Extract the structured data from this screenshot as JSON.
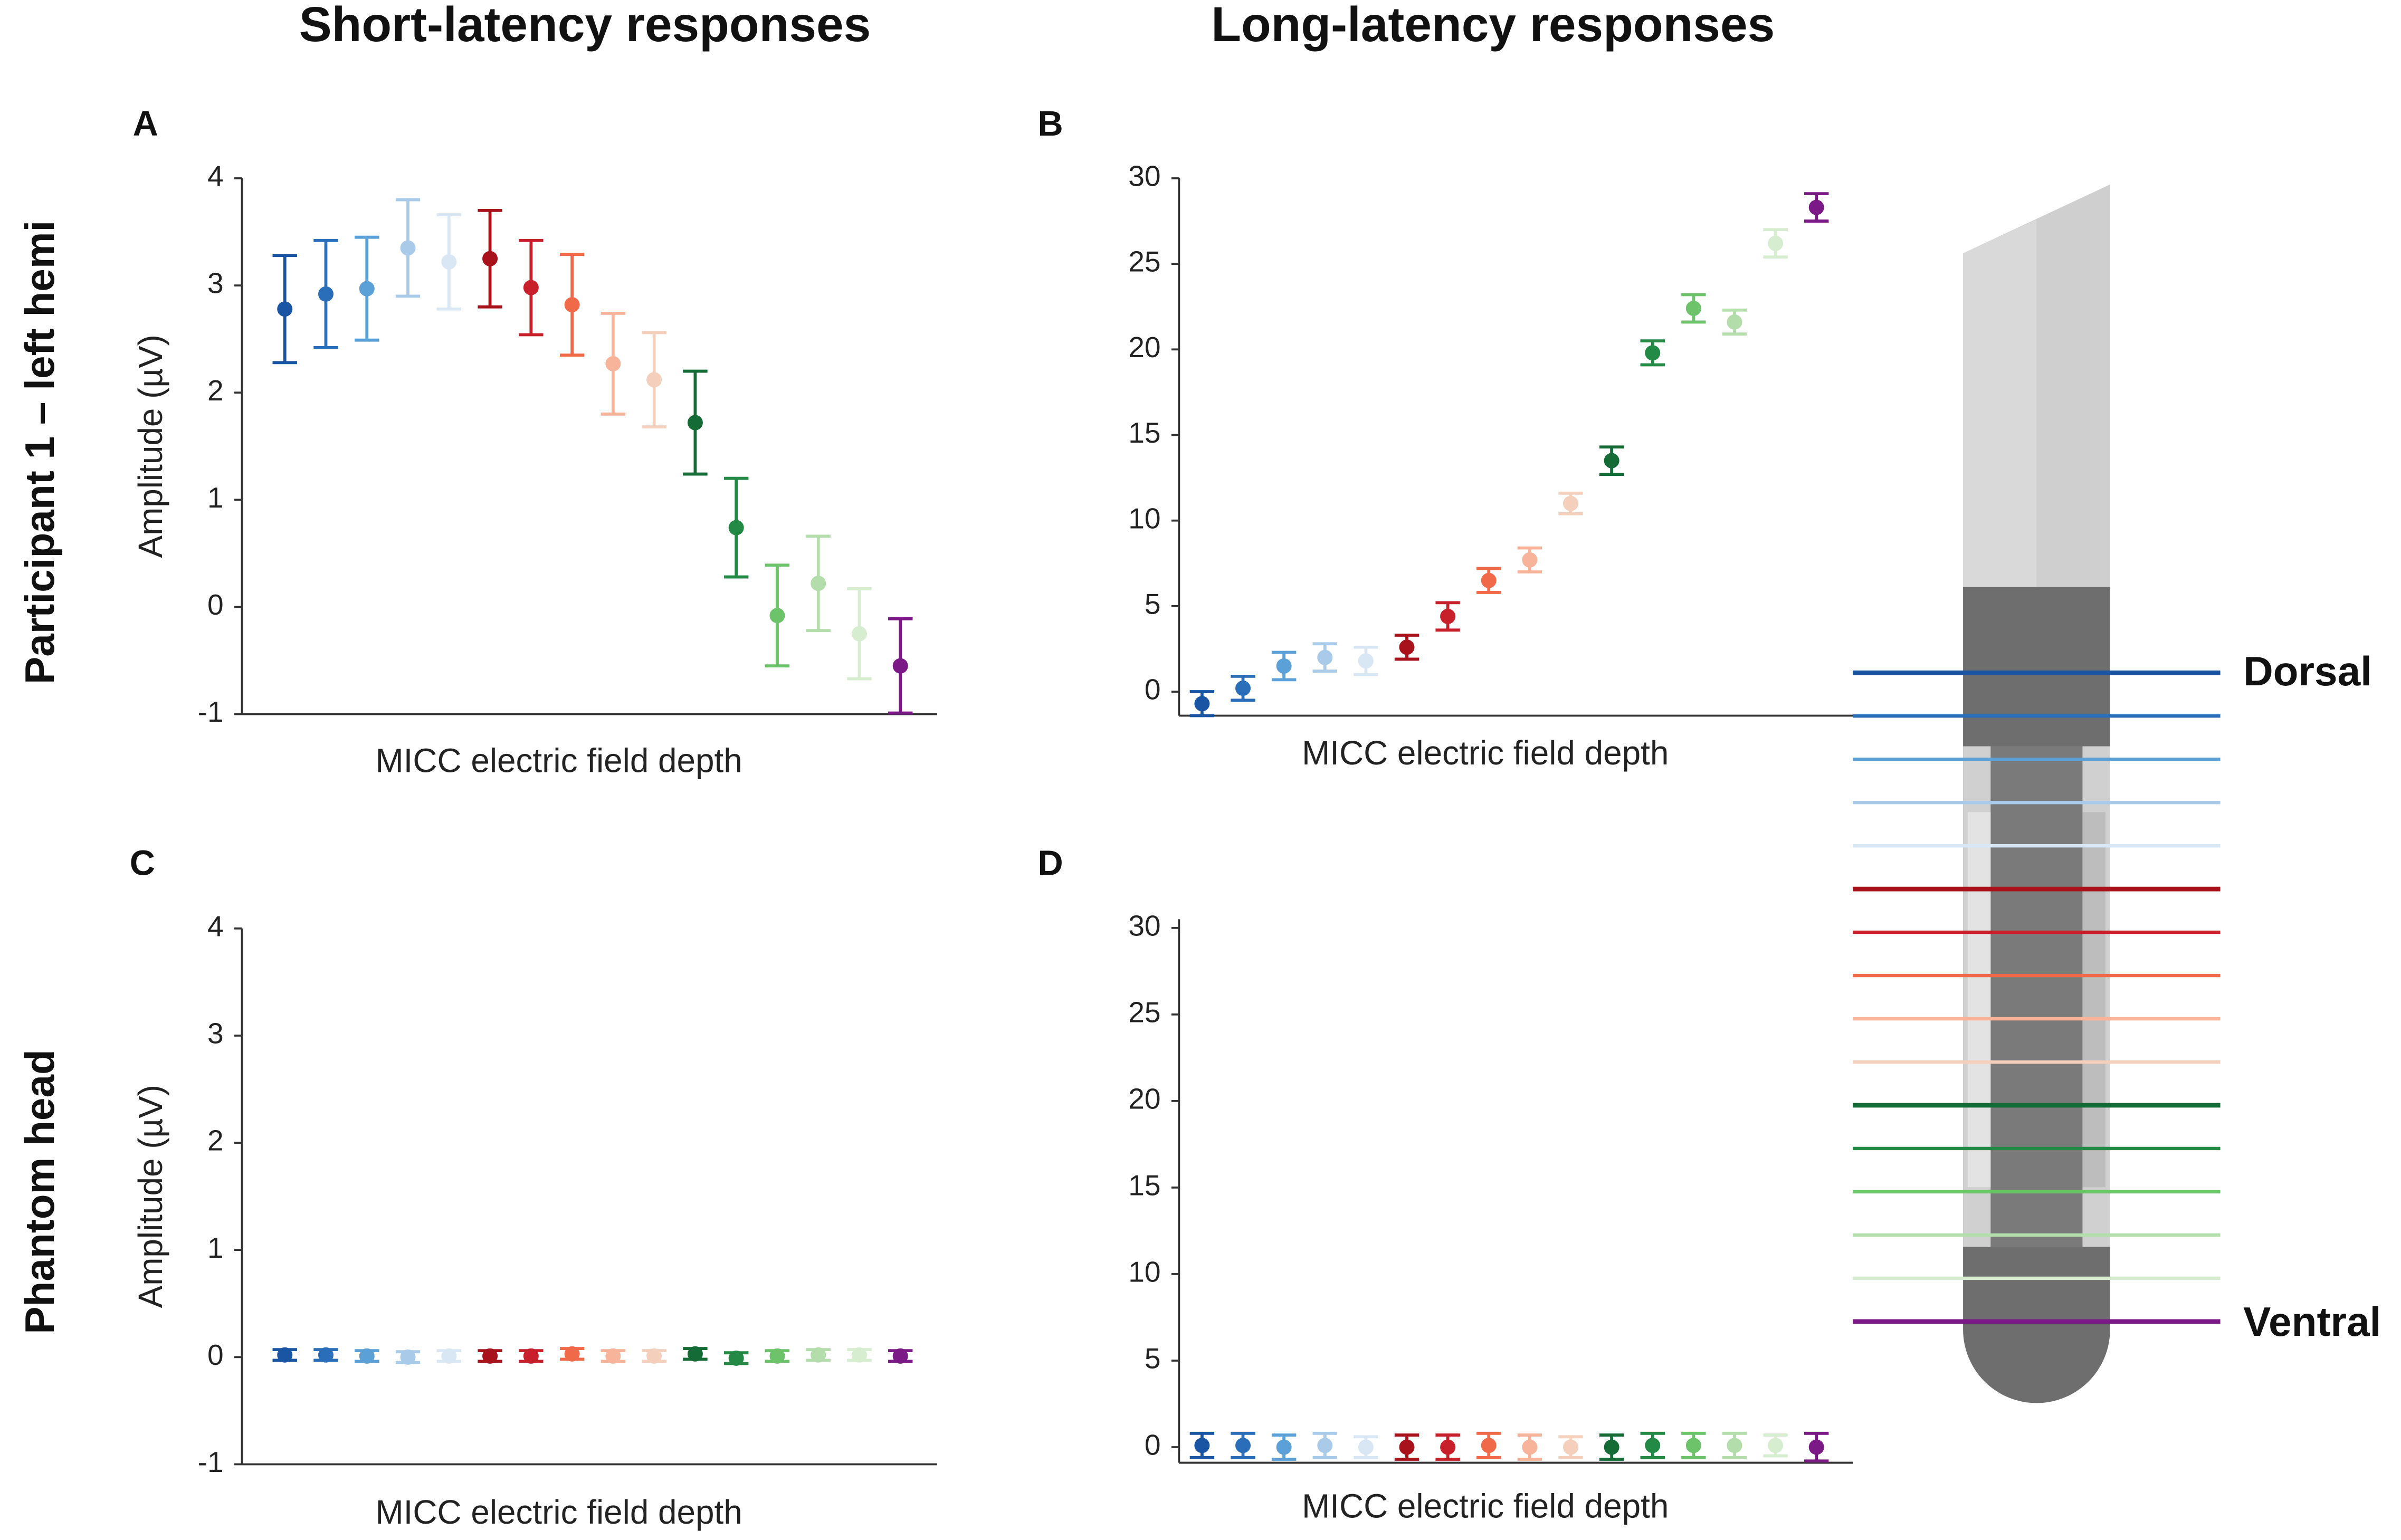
{
  "column_titles": [
    "Short-latency responses",
    "Long-latency responses"
  ],
  "row_labels": [
    "Participant 1 – left hemi",
    "Phantom head"
  ],
  "electrode": {
    "top_label": "Dorsal",
    "bottom_label": "Ventral"
  },
  "chart_data": [
    {
      "type": "errorbar",
      "panel": "A",
      "ylabel": "Amplitude (µV)",
      "xlabel": "MICC electric field depth",
      "categories": [
        null,
        null,
        null,
        null,
        null,
        null,
        null,
        null,
        null,
        null,
        null,
        null,
        null,
        null,
        null,
        null
      ],
      "values": [
        2.78,
        2.92,
        2.97,
        3.35,
        3.22,
        3.25,
        2.98,
        2.82,
        2.27,
        2.12,
        1.72,
        0.74,
        -0.08,
        0.22,
        -0.25,
        -0.55
      ],
      "errors": [
        0.5,
        0.5,
        0.48,
        0.45,
        0.44,
        0.45,
        0.44,
        0.47,
        0.47,
        0.44,
        0.48,
        0.46,
        0.47,
        0.44,
        0.42,
        0.44
      ],
      "colors": [
        "#1a55a3",
        "#2a6db8",
        "#5ba1d8",
        "#a9cbe9",
        "#d9e7f5",
        "#a8121b",
        "#c8202a",
        "#f06a4a",
        "#f7b49a",
        "#f3cfbc",
        "#146b36",
        "#238a45",
        "#6cc36a",
        "#b3deab",
        "#d6edcf",
        "#7b1a86"
      ],
      "ylim": [
        -1,
        4
      ],
      "yticks": [
        -1,
        0,
        1,
        2,
        3,
        4
      ]
    },
    {
      "type": "errorbar",
      "panel": "B",
      "xlabel": "MICC electric field depth",
      "categories": [
        null,
        null,
        null,
        null,
        null,
        null,
        null,
        null,
        null,
        null,
        null,
        null,
        null,
        null,
        null,
        null
      ],
      "values": [
        -0.7,
        0.2,
        1.5,
        2.0,
        1.8,
        2.6,
        4.4,
        6.5,
        7.7,
        11.0,
        13.5,
        19.8,
        22.4,
        21.6,
        26.2,
        28.3
      ],
      "errors": [
        0.7,
        0.7,
        0.8,
        0.8,
        0.8,
        0.7,
        0.8,
        0.7,
        0.7,
        0.6,
        0.8,
        0.7,
        0.8,
        0.7,
        0.8,
        0.8
      ],
      "colors": [
        "#1a55a3",
        "#2a6db8",
        "#5ba1d8",
        "#a9cbe9",
        "#d9e7f5",
        "#a8121b",
        "#c8202a",
        "#f06a4a",
        "#f7b49a",
        "#f3cfbc",
        "#146b36",
        "#238a45",
        "#6cc36a",
        "#b3deab",
        "#d6edcf",
        "#7b1a86"
      ],
      "ylim": [
        -1.4,
        30
      ],
      "yticks": [
        0,
        5,
        10,
        15,
        20,
        25,
        30
      ]
    },
    {
      "type": "errorbar",
      "panel": "C",
      "ylabel": "Amplitude (µV)",
      "xlabel": "MICC electric field depth",
      "categories": [
        null,
        null,
        null,
        null,
        null,
        null,
        null,
        null,
        null,
        null,
        null,
        null,
        null,
        null,
        null,
        null
      ],
      "values": [
        0.02,
        0.02,
        0.01,
        0.0,
        0.01,
        0.01,
        0.01,
        0.03,
        0.01,
        0.01,
        0.03,
        -0.01,
        0.01,
        0.02,
        0.02,
        0.01
      ],
      "errors": [
        0.05,
        0.05,
        0.05,
        0.05,
        0.05,
        0.05,
        0.05,
        0.05,
        0.05,
        0.05,
        0.05,
        0.05,
        0.05,
        0.05,
        0.05,
        0.05
      ],
      "colors": [
        "#1a55a3",
        "#2a6db8",
        "#5ba1d8",
        "#a9cbe9",
        "#d9e7f5",
        "#a8121b",
        "#c8202a",
        "#f06a4a",
        "#f7b49a",
        "#f3cfbc",
        "#146b36",
        "#238a45",
        "#6cc36a",
        "#b3deab",
        "#d6edcf",
        "#7b1a86"
      ],
      "ylim": [
        -1,
        4
      ],
      "yticks": [
        -1,
        0,
        1,
        2,
        3,
        4
      ]
    },
    {
      "type": "errorbar",
      "panel": "D",
      "xlabel": "MICC electric field depth",
      "categories": [
        null,
        null,
        null,
        null,
        null,
        null,
        null,
        null,
        null,
        null,
        null,
        null,
        null,
        null,
        null,
        null
      ],
      "values": [
        0.1,
        0.1,
        0.0,
        0.1,
        0.0,
        0.0,
        0.0,
        0.1,
        0.0,
        0.0,
        0.0,
        0.1,
        0.1,
        0.1,
        0.1,
        0.0
      ],
      "errors": [
        0.7,
        0.7,
        0.7,
        0.7,
        0.6,
        0.7,
        0.7,
        0.7,
        0.7,
        0.6,
        0.7,
        0.7,
        0.7,
        0.7,
        0.6,
        0.8
      ],
      "colors": [
        "#1a55a3",
        "#2a6db8",
        "#5ba1d8",
        "#a9cbe9",
        "#d9e7f5",
        "#a8121b",
        "#c8202a",
        "#f06a4a",
        "#f7b49a",
        "#f3cfbc",
        "#146b36",
        "#238a45",
        "#6cc36a",
        "#b3deab",
        "#d6edcf",
        "#7b1a86"
      ],
      "ylim": [
        -0.9,
        30.5
      ],
      "yticks": [
        0,
        5,
        10,
        15,
        20,
        25,
        30
      ]
    }
  ]
}
